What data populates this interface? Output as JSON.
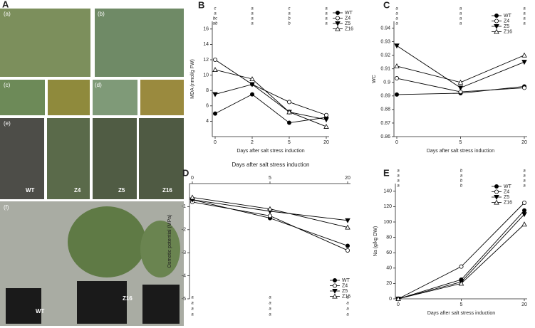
{
  "photos": {
    "panel_label": "A",
    "labels": [
      "(a)",
      "(b)",
      "(c)",
      "(d)",
      "(e)",
      "WT",
      "Z4",
      "Z5",
      "Z16",
      "(f)",
      "WT",
      "Z16"
    ]
  },
  "chart_data": [
    {
      "type": "line",
      "panel_label": "B",
      "y_label": "MDA (nmol/g FW)",
      "x_label": "Days after salt stress induction",
      "caption": "Days after salt stress induction",
      "categories": [
        "0",
        "2",
        "5",
        "20"
      ],
      "ylim": [
        2,
        17
      ],
      "yticks": [
        4,
        6,
        8,
        10,
        12,
        14,
        16
      ],
      "letters": [
        [
          "c",
          "a",
          "bc",
          "ab"
        ],
        [
          "a",
          "a",
          "a",
          "a"
        ],
        [
          "c",
          "a",
          "b",
          "b"
        ],
        [
          "a",
          "a",
          "a",
          "a"
        ]
      ],
      "series": [
        {
          "name": "WT",
          "marker": "circle-filled",
          "color": "#000000",
          "values": [
            5.0,
            7.5,
            3.8,
            4.5
          ]
        },
        {
          "name": "Z4",
          "marker": "circle-open",
          "color": "#000000",
          "values": [
            12.0,
            8.8,
            6.5,
            4.8
          ]
        },
        {
          "name": "Z5",
          "marker": "triangle-down-filled",
          "color": "#000000",
          "values": [
            7.5,
            8.8,
            5.2,
            4.2
          ]
        },
        {
          "name": "Z16",
          "marker": "triangle-up-open",
          "color": "#000000",
          "values": [
            10.7,
            9.5,
            5.2,
            3.3
          ]
        }
      ]
    },
    {
      "type": "line",
      "panel_label": "C",
      "y_label": "WC",
      "x_label": "Days after salt stress induction",
      "categories": [
        "0",
        "5",
        "20"
      ],
      "ylim": [
        0.86,
        0.945
      ],
      "yticks": [
        0.86,
        0.87,
        0.88,
        0.89,
        0.9,
        0.91,
        0.92,
        0.93,
        0.94
      ],
      "letters": [
        [
          "a",
          "a",
          "a",
          "a"
        ],
        [
          "a",
          "a",
          "a",
          "a"
        ],
        [
          "a",
          "a",
          "a",
          "a"
        ]
      ],
      "series": [
        {
          "name": "WT",
          "marker": "circle-filled",
          "color": "#000000",
          "values": [
            0.891,
            0.892,
            0.897
          ]
        },
        {
          "name": "Z4",
          "marker": "circle-open",
          "color": "#000000",
          "values": [
            0.903,
            0.893,
            0.896
          ]
        },
        {
          "name": "Z5",
          "marker": "triangle-down-filled",
          "color": "#000000",
          "values": [
            0.927,
            0.896,
            0.915
          ]
        },
        {
          "name": "Z16",
          "marker": "triangle-up-open",
          "color": "#000000",
          "values": [
            0.912,
            0.9,
            0.92
          ]
        }
      ]
    },
    {
      "type": "line",
      "panel_label": "D",
      "y_label": "Osmotic potential (MPa)",
      "x_axis_top": true,
      "categories": [
        "0",
        "5",
        "20"
      ],
      "ylim": [
        -5,
        0
      ],
      "yticks": [
        -5,
        -4,
        -3,
        -2,
        -1
      ],
      "letters": [
        [
          "a",
          "a",
          "a",
          "a"
        ],
        [
          "a",
          "a",
          "a",
          "a"
        ],
        [
          "a",
          "a",
          "a",
          "a"
        ]
      ],
      "series": [
        {
          "name": "WT",
          "marker": "circle-filled",
          "color": "#000000",
          "values": [
            -0.7,
            -1.5,
            -2.7
          ]
        },
        {
          "name": "Z4",
          "marker": "circle-open",
          "color": "#000000",
          "values": [
            -0.8,
            -1.4,
            -2.9
          ]
        },
        {
          "name": "Z5",
          "marker": "triangle-down-filled",
          "color": "#000000",
          "values": [
            -0.7,
            -1.2,
            -1.6
          ]
        },
        {
          "name": "Z16",
          "marker": "triangle-up-open",
          "color": "#000000",
          "values": [
            -0.6,
            -1.1,
            -1.9
          ]
        }
      ]
    },
    {
      "type": "line",
      "panel_label": "E",
      "y_label": "Na (g/kg DW)",
      "x_label": "Days after salt stress induction",
      "categories": [
        "0",
        "5",
        "20"
      ],
      "ylim": [
        0,
        150
      ],
      "yticks": [
        0,
        20,
        40,
        60,
        80,
        100,
        120,
        140
      ],
      "letters": [
        [
          "a",
          "a",
          "a",
          "a"
        ],
        [
          "b",
          "a",
          "b",
          "b"
        ],
        [
          "a",
          "a",
          "a",
          "a"
        ]
      ],
      "series": [
        {
          "name": "WT",
          "marker": "circle-filled",
          "color": "#000000",
          "values": [
            0,
            25,
            115
          ]
        },
        {
          "name": "Z4",
          "marker": "circle-open",
          "color": "#000000",
          "values": [
            0,
            42,
            125
          ]
        },
        {
          "name": "Z5",
          "marker": "triangle-down-filled",
          "color": "#000000",
          "values": [
            0,
            22,
            110
          ]
        },
        {
          "name": "Z16",
          "marker": "triangle-up-open",
          "color": "#000000",
          "values": [
            0,
            20,
            97
          ]
        }
      ]
    }
  ]
}
